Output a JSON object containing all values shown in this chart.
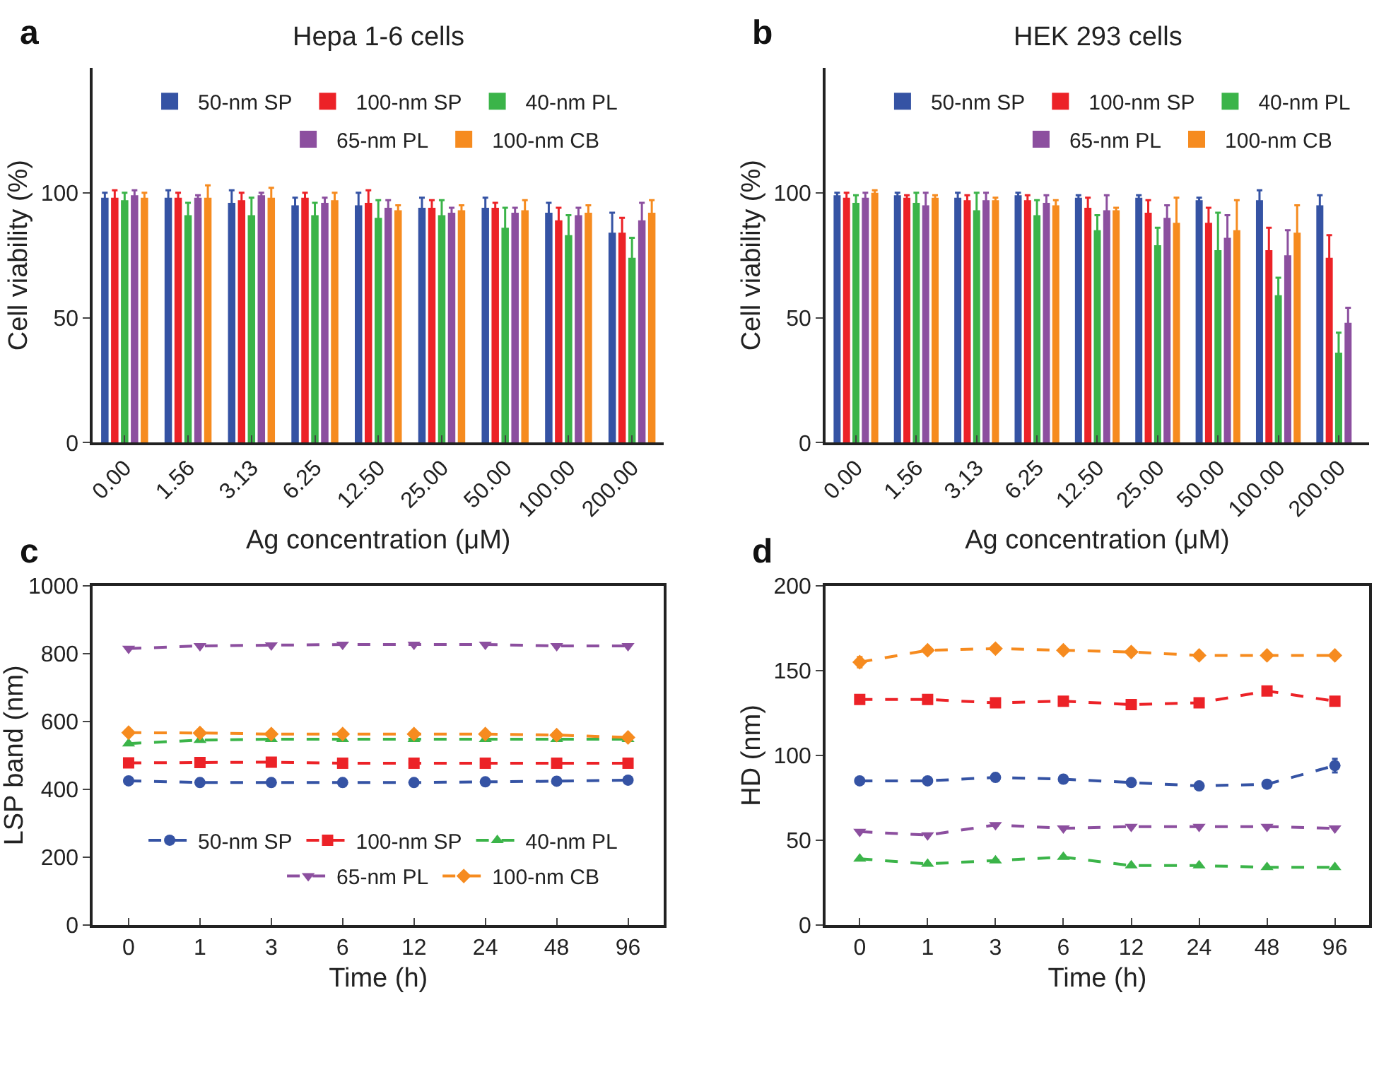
{
  "chart_data": [
    {
      "type": "bar",
      "title": "Hepa 1-6 cells",
      "xlabel": "Ag concentration (μM)",
      "ylabel": "Cell viability (%)",
      "annotations": [
        "a"
      ],
      "categories": [
        "0.00",
        "1.56",
        "3.13",
        "6.25",
        "12.50",
        "25.00",
        "50.00",
        "100.00",
        "200.00"
      ],
      "ylim": [
        0,
        150
      ],
      "yticks": [
        0,
        50,
        100
      ],
      "legend": "top",
      "series": [
        {
          "name": "50-nm SP",
          "color": "#3553a4",
          "values": [
            98,
            98,
            96,
            95,
            95,
            94,
            94,
            92,
            84
          ],
          "errors": [
            2,
            3,
            5,
            3,
            5,
            4,
            4,
            4,
            8
          ]
        },
        {
          "name": "100-nm SP",
          "color": "#ec2227",
          "values": [
            98,
            98,
            97,
            98,
            96,
            94,
            94,
            89,
            84
          ],
          "errors": [
            3,
            2,
            3,
            2,
            5,
            3,
            2,
            5,
            6
          ]
        },
        {
          "name": "40-nm PL",
          "color": "#3bb449",
          "values": [
            97,
            91,
            91,
            91,
            90,
            91,
            86,
            83,
            74
          ],
          "errors": [
            3,
            5,
            7,
            5,
            7,
            6,
            8,
            8,
            8
          ]
        },
        {
          "name": "65-nm PL",
          "color": "#8c4f9f",
          "values": [
            99,
            98,
            99,
            96,
            94,
            92,
            92,
            91,
            89
          ],
          "errors": [
            2,
            1,
            1,
            2,
            3,
            2,
            2,
            3,
            7
          ]
        },
        {
          "name": "100-nm CB",
          "color": "#f68b1f",
          "values": [
            98,
            98,
            98,
            97,
            93,
            93,
            93,
            92,
            92
          ],
          "errors": [
            2,
            5,
            4,
            3,
            2,
            2,
            4,
            3,
            5
          ]
        }
      ]
    },
    {
      "type": "bar",
      "title": "HEK 293 cells",
      "xlabel": "Ag concentration (μM)",
      "ylabel": "Cell viability (%)",
      "annotations": [
        "b"
      ],
      "categories": [
        "0.00",
        "1.56",
        "3.13",
        "6.25",
        "12.50",
        "25.00",
        "50.00",
        "100.00",
        "200.00"
      ],
      "ylim": [
        0,
        150
      ],
      "yticks": [
        0,
        50,
        100
      ],
      "legend": "top",
      "series": [
        {
          "name": "50-nm SP",
          "color": "#3553a4",
          "values": [
            99,
            99,
            98,
            99,
            98,
            98,
            97,
            97,
            95
          ],
          "errors": [
            1,
            1,
            2,
            1,
            1,
            1,
            1,
            4,
            4
          ]
        },
        {
          "name": "100-nm SP",
          "color": "#ec2227",
          "values": [
            98,
            98,
            97,
            97,
            94,
            92,
            88,
            77,
            74
          ],
          "errors": [
            2,
            1,
            2,
            2,
            4,
            5,
            6,
            9,
            9
          ]
        },
        {
          "name": "40-nm PL",
          "color": "#3bb449",
          "values": [
            96,
            96,
            93,
            91,
            85,
            79,
            77,
            59,
            36
          ],
          "errors": [
            3,
            4,
            7,
            6,
            6,
            7,
            15,
            7,
            8
          ]
        },
        {
          "name": "65-nm PL",
          "color": "#8c4f9f",
          "values": [
            98,
            95,
            97,
            96,
            93,
            90,
            82,
            75,
            48
          ],
          "errors": [
            2,
            5,
            3,
            3,
            6,
            5,
            9,
            10,
            6
          ]
        },
        {
          "name": "100-nm CB",
          "color": "#f68b1f",
          "values": [
            100,
            98,
            97,
            95,
            93,
            88,
            85,
            84,
            null
          ],
          "errors": [
            1,
            1,
            1,
            2,
            1,
            10,
            12,
            11,
            null
          ]
        }
      ]
    },
    {
      "type": "line",
      "xlabel": "Time (h)",
      "ylabel": "LSP band (nm)",
      "annotations": [
        "c"
      ],
      "categories": [
        "0",
        "1",
        "3",
        "6",
        "12",
        "24",
        "48",
        "96"
      ],
      "ylim": [
        0,
        1000
      ],
      "yticks": [
        0,
        200,
        400,
        600,
        800,
        1000
      ],
      "legend": "bottom",
      "line_style": "dashed",
      "series": [
        {
          "name": "50-nm SP",
          "color": "#3553a4",
          "marker": "circle",
          "values": [
            425,
            420,
            420,
            420,
            420,
            422,
            424,
            427
          ]
        },
        {
          "name": "100-nm SP",
          "color": "#ec2227",
          "marker": "square",
          "values": [
            478,
            479,
            480,
            477,
            477,
            477,
            477,
            477
          ]
        },
        {
          "name": "40-nm PL",
          "color": "#3bb449",
          "marker": "triangle",
          "values": [
            535,
            545,
            548,
            548,
            548,
            548,
            548,
            548
          ]
        },
        {
          "name": "65-nm PL",
          "color": "#8c4f9f",
          "marker": "triangle-down",
          "values": [
            815,
            823,
            825,
            827,
            827,
            827,
            823,
            823
          ]
        },
        {
          "name": "100-nm CB",
          "color": "#f68b1f",
          "marker": "diamond",
          "values": [
            567,
            566,
            563,
            563,
            563,
            563,
            560,
            553
          ]
        }
      ]
    },
    {
      "type": "line",
      "xlabel": "Time (h)",
      "ylabel": "HD (nm)",
      "annotations": [
        "d"
      ],
      "categories": [
        "0",
        "1",
        "3",
        "6",
        "12",
        "24",
        "48",
        "96"
      ],
      "ylim": [
        0,
        200
      ],
      "yticks": [
        0,
        50,
        100,
        150,
        200
      ],
      "legend": false,
      "line_style": "dashed",
      "series": [
        {
          "color": "#3553a4",
          "marker": "circle",
          "values": [
            85,
            85,
            87,
            86,
            84,
            82,
            83,
            94
          ],
          "errors": [
            null,
            null,
            null,
            null,
            null,
            null,
            null,
            4
          ]
        },
        {
          "color": "#ec2227",
          "marker": "square",
          "values": [
            133,
            133,
            131,
            132,
            130,
            131,
            138,
            132
          ]
        },
        {
          "color": "#3bb449",
          "marker": "triangle",
          "values": [
            39,
            36,
            38,
            40,
            35,
            35,
            34,
            34
          ]
        },
        {
          "color": "#8c4f9f",
          "marker": "triangle-down",
          "values": [
            55,
            53,
            59,
            57,
            58,
            58,
            58,
            57
          ]
        },
        {
          "color": "#f68b1f",
          "marker": "diamond",
          "values": [
            155,
            162,
            163,
            162,
            161,
            159,
            159,
            159
          ],
          "errors": [
            3,
            null,
            null,
            null,
            null,
            null,
            null,
            null
          ]
        }
      ]
    }
  ]
}
